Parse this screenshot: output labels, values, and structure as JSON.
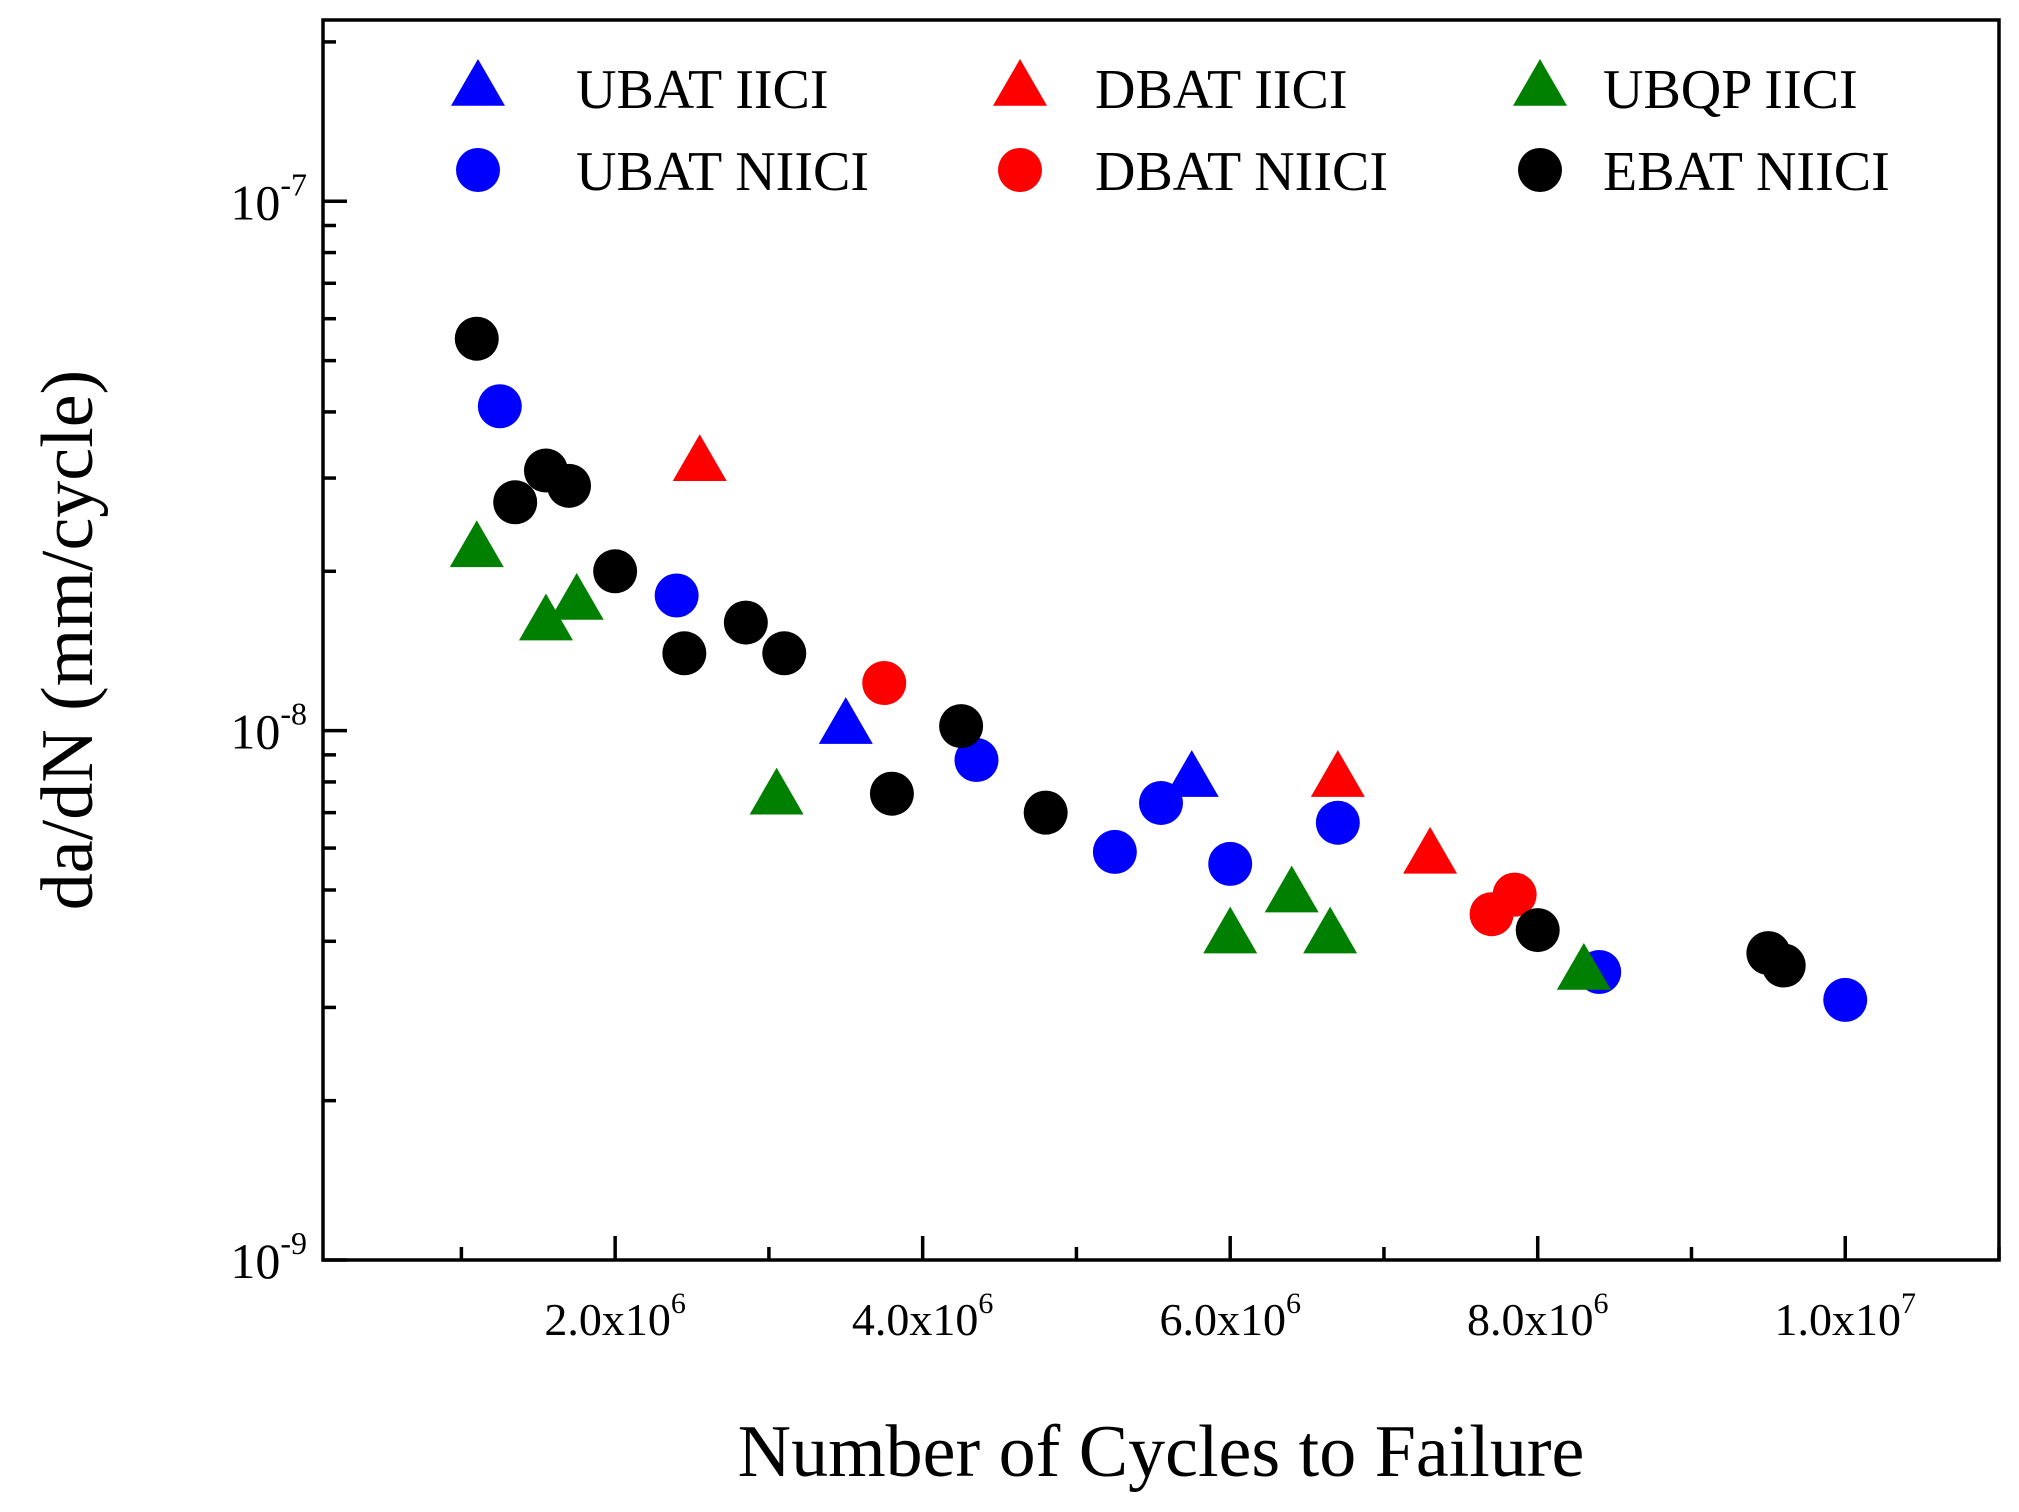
{
  "chart_data": {
    "type": "scatter",
    "title": "",
    "xlabel": "Number of Cycles to Failure",
    "ylabel": "da/dN (mm/cycle)",
    "xscale": "linear",
    "yscale": "log",
    "xlim": [
      100000,
      11000000
    ],
    "ylim": [
      1e-09,
      2.2e-07
    ],
    "x_major_ticks": [
      2000000,
      4000000,
      6000000,
      8000000,
      10000000
    ],
    "x_minor_ticks": [
      1000000,
      3000000,
      5000000,
      7000000,
      9000000,
      11000000
    ],
    "x_tick_labels": [
      {
        "mantissa": "2.0x10",
        "exp": "6"
      },
      {
        "mantissa": "4.0x10",
        "exp": "6"
      },
      {
        "mantissa": "6.0x10",
        "exp": "6"
      },
      {
        "mantissa": "8.0x10",
        "exp": "6"
      },
      {
        "mantissa": "1.0x10",
        "exp": "7"
      }
    ],
    "y_major_ticks": [
      1e-09,
      1e-08,
      1e-07
    ],
    "y_tick_labels": [
      {
        "mantissa": "10",
        "exp": "-9"
      },
      {
        "mantissa": "10",
        "exp": "-8"
      },
      {
        "mantissa": "10",
        "exp": "-7"
      }
    ],
    "grid": false,
    "legend_position": "top",
    "series": [
      {
        "name": "UBAT IICI",
        "marker": "triangle",
        "color": "#0000ff",
        "points": [
          [
            3500000,
            1.02e-08
          ],
          [
            5750000,
            8.1e-09
          ]
        ]
      },
      {
        "name": "DBAT IICI",
        "marker": "triangle",
        "color": "#ff0000",
        "points": [
          [
            2550000,
            3.2e-08
          ],
          [
            6700000,
            8.1e-09
          ],
          [
            7300000,
            5.8e-09
          ]
        ]
      },
      {
        "name": "UBQP IICI",
        "marker": "triangle",
        "color": "#008000",
        "points": [
          [
            1100000,
            2.2e-08
          ],
          [
            1550000,
            1.6e-08
          ],
          [
            1750000,
            1.75e-08
          ],
          [
            3050000,
            7.5e-09
          ],
          [
            6000000,
            4.1e-09
          ],
          [
            6400000,
            4.9e-09
          ],
          [
            6650000,
            4.1e-09
          ],
          [
            8300000,
            3.5e-09
          ]
        ]
      },
      {
        "name": "UBAT NIICI",
        "marker": "circle",
        "color": "#0000ff",
        "points": [
          [
            1250000,
            4.1e-08
          ],
          [
            2400000,
            1.8e-08
          ],
          [
            4350000,
            8.8e-09
          ],
          [
            5250000,
            5.9e-09
          ],
          [
            5550000,
            7.3e-09
          ],
          [
            6000000,
            5.6e-09
          ],
          [
            6700000,
            6.7e-09
          ],
          [
            8400000,
            3.5e-09
          ],
          [
            10000000,
            3.1e-09
          ]
        ]
      },
      {
        "name": "DBAT NIICI",
        "marker": "circle",
        "color": "#ff0000",
        "points": [
          [
            3750000,
            1.23e-08
          ],
          [
            7700000,
            4.5e-09
          ],
          [
            7850000,
            4.9e-09
          ]
        ]
      },
      {
        "name": "EBAT NIICI",
        "marker": "circle",
        "color": "#000000",
        "points": [
          [
            1100000,
            5.5e-08
          ],
          [
            1350000,
            2.7e-08
          ],
          [
            1550000,
            3.1e-08
          ],
          [
            1700000,
            2.9e-08
          ],
          [
            2000000,
            2e-08
          ],
          [
            2450000,
            1.4e-08
          ],
          [
            2850000,
            1.6e-08
          ],
          [
            3100000,
            1.4e-08
          ],
          [
            3800000,
            7.6e-09
          ],
          [
            4250000,
            1.02e-08
          ],
          [
            4800000,
            7e-09
          ],
          [
            8000000,
            4.2e-09
          ],
          [
            9500000,
            3.8e-09
          ],
          [
            9600000,
            3.6e-09
          ]
        ]
      }
    ]
  }
}
